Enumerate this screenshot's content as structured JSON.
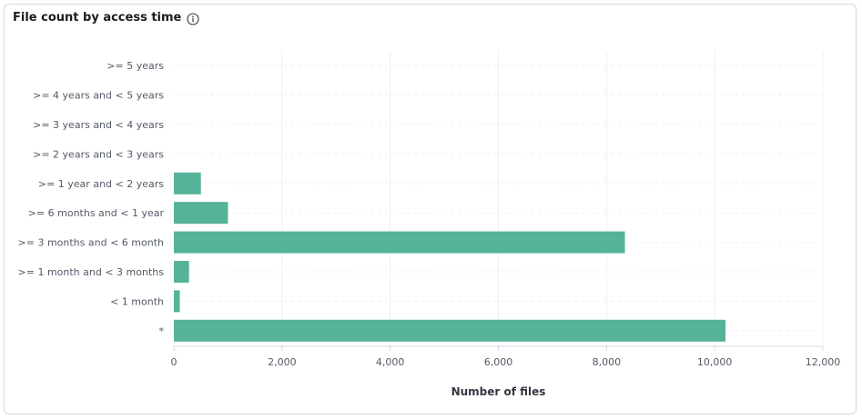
{
  "panel": {
    "title": "File count by access time"
  },
  "icons": {
    "info": "info-icon"
  },
  "colors": {
    "bar": "#54b399",
    "grid": "#eef0f3",
    "axis": "#d3dae6"
  },
  "chart_data": {
    "type": "bar",
    "orientation": "horizontal",
    "title": "File count by access time",
    "xlabel": "Number of files",
    "ylabel": "",
    "xlim": [
      0,
      12000
    ],
    "x_ticks": [
      0,
      2000,
      4000,
      6000,
      8000,
      10000,
      12000
    ],
    "x_tick_labels": [
      "0",
      "2,000",
      "4,000",
      "6,000",
      "8,000",
      "10,000",
      "12,000"
    ],
    "grid": true,
    "categories": [
      ">= 5 years",
      ">= 4 years and < 5 years",
      ">= 3 years and < 4 years",
      ">= 2 years and < 3 years",
      ">= 1 year and < 2 years",
      ">= 6 months and < 1 year",
      ">= 3 months and < 6 month",
      ">= 1 month and < 3 months",
      "< 1 month",
      "*"
    ],
    "values": [
      0,
      0,
      0,
      0,
      500,
      1000,
      8340,
      280,
      110,
      10200
    ]
  }
}
